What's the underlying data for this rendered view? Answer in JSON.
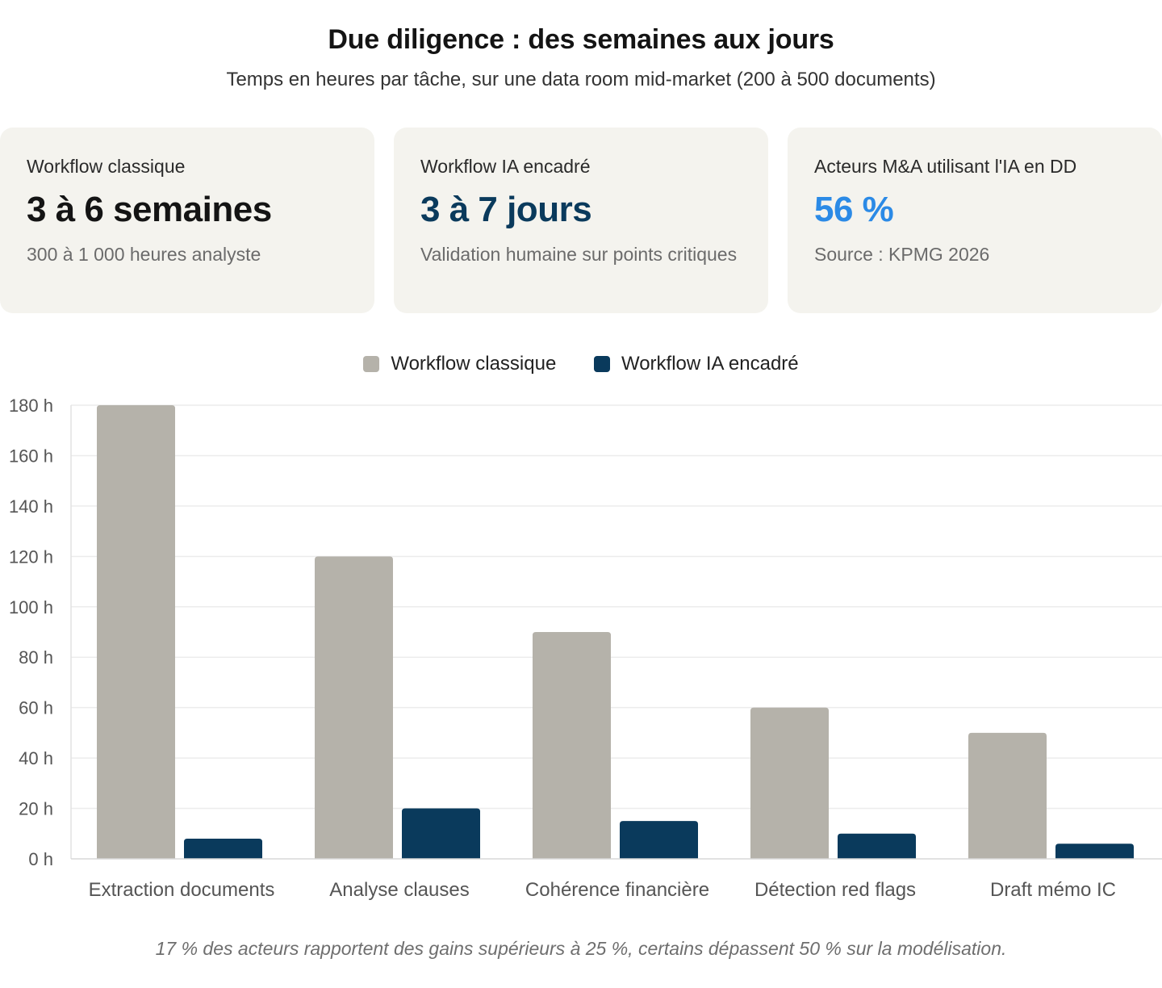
{
  "header": {
    "title": "Due diligence : des semaines aux jours",
    "subtitle": "Temps en heures par tâche, sur une data room mid-market (200 à 500 documents)"
  },
  "cards": [
    {
      "label": "Workflow classique",
      "value": "3 à 6 semaines",
      "note": "300 à 1 000 heures analyste"
    },
    {
      "label": "Workflow IA encadré",
      "value": "3 à 7 jours",
      "note": "Validation humaine sur points critiques"
    },
    {
      "label": "Acteurs M&A utilisant l'IA en DD",
      "value": "56 %",
      "note": "Source : KPMG 2026"
    }
  ],
  "colors": {
    "classique": "#b5b2aa",
    "ia": "#0a3a5c",
    "highlight": "#2b8ae6",
    "card_bg": "#f4f3ee"
  },
  "chart_data": {
    "type": "bar",
    "categories": [
      "Extraction documents",
      "Analyse clauses",
      "Cohérence financière",
      "Détection red flags",
      "Draft mémo IC"
    ],
    "series": [
      {
        "name": "Workflow classique",
        "values": [
          180,
          120,
          90,
          60,
          50
        ]
      },
      {
        "name": "Workflow IA encadré",
        "values": [
          8,
          20,
          15,
          10,
          6
        ]
      }
    ],
    "ylim": [
      0,
      180
    ],
    "yticks": [
      0,
      20,
      40,
      60,
      80,
      100,
      120,
      140,
      160,
      180
    ],
    "y_unit": "h",
    "grid": true,
    "legend": "top-center"
  },
  "footnote": "17 % des acteurs rapportent des gains supérieurs à 25 %, certains dépassent 50 % sur la modélisation."
}
